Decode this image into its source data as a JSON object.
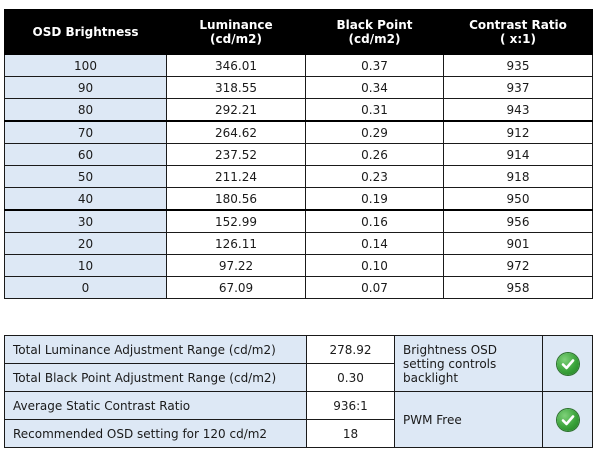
{
  "main_table": {
    "headers": [
      "OSD Brightness",
      "Luminance\n(cd/m2)",
      "Black Point\n(cd/m2)",
      "Contrast Ratio\n( x:1)"
    ],
    "rows": [
      [
        "100",
        "346.01",
        "0.37",
        "935"
      ],
      [
        "90",
        "318.55",
        "0.34",
        "937"
      ],
      [
        "80",
        "292.21",
        "0.31",
        "943"
      ],
      [
        "70",
        "264.62",
        "0.29",
        "912"
      ],
      [
        "60",
        "237.52",
        "0.26",
        "914"
      ],
      [
        "50",
        "211.24",
        "0.23",
        "918"
      ],
      [
        "40",
        "180.56",
        "0.19",
        "950"
      ],
      [
        "30",
        "152.99",
        "0.16",
        "956"
      ],
      [
        "20",
        "126.11",
        "0.14",
        "901"
      ],
      [
        "10",
        "97.22",
        "0.10",
        "972"
      ],
      [
        "0",
        "67.09",
        "0.07",
        "958"
      ]
    ]
  },
  "summary": {
    "rows": [
      {
        "label": "Total Luminance Adjustment Range (cd/m2)",
        "value": "278.92"
      },
      {
        "label": "Total Black Point Adjustment Range (cd/m2)",
        "value": "0.30"
      },
      {
        "label": "Average Static Contrast Ratio",
        "value": "936:1"
      },
      {
        "label": "Recommended OSD setting for 120 cd/m2",
        "value": "18"
      }
    ],
    "notes": [
      {
        "text": "Brightness OSD setting controls backlight",
        "icon": "check-icon"
      },
      {
        "text": "PWM Free",
        "icon": "check-icon"
      }
    ]
  },
  "colors": {
    "header_bg": "#000000",
    "label_bg": "#dde8f5",
    "check_green": "#3aa33a"
  }
}
